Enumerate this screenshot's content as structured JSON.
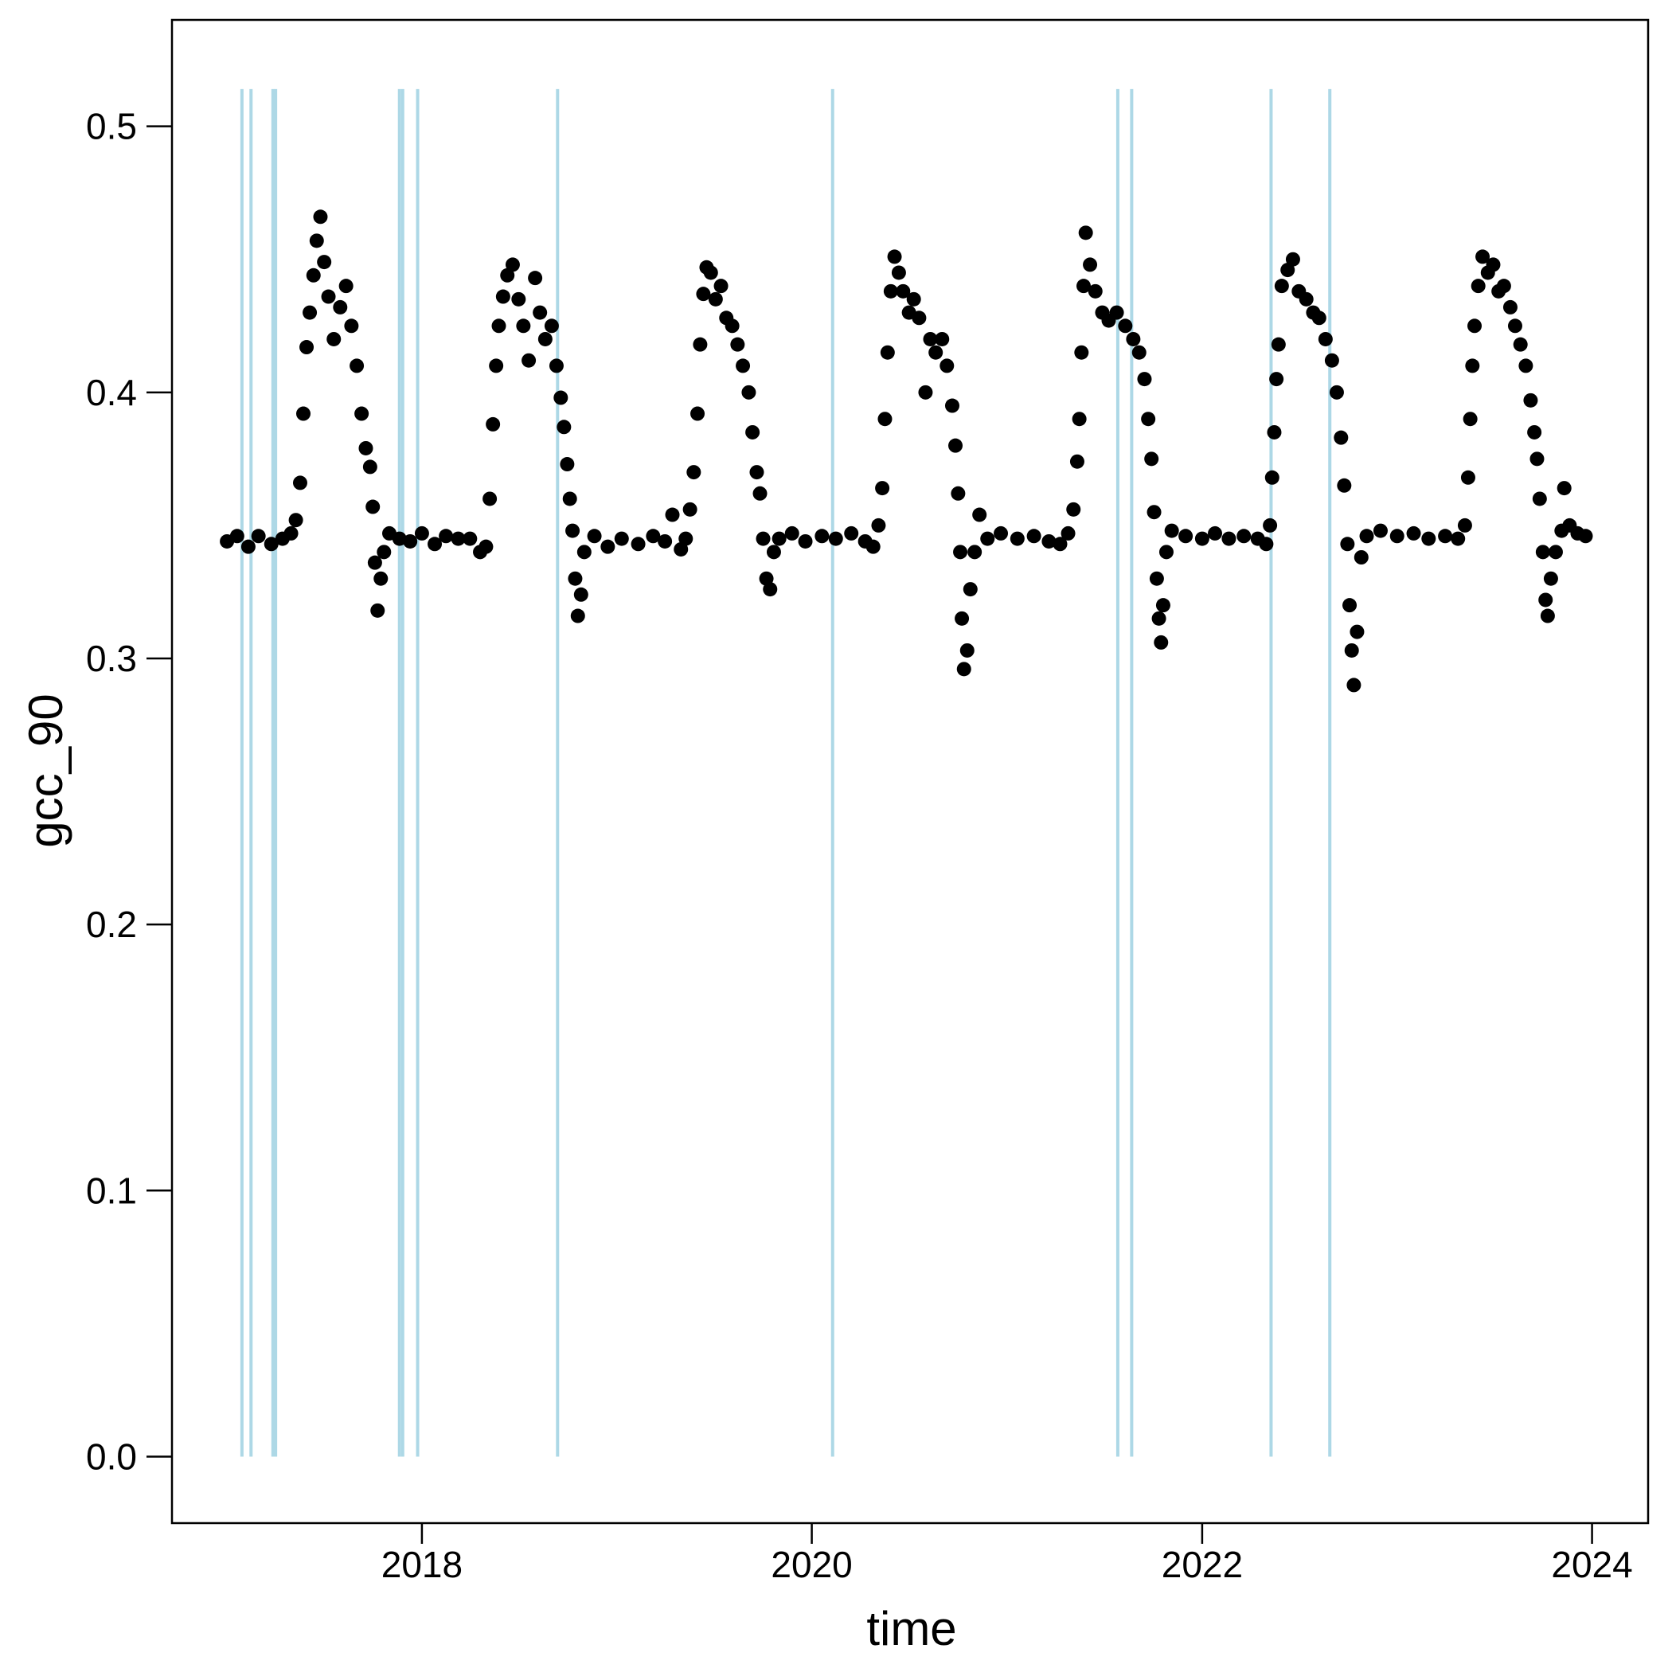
{
  "chart_data": {
    "type": "scatter",
    "title": "",
    "xlabel": "time",
    "ylabel": "gcc_90",
    "xlim": [
      "2016-09-20",
      "2024-04-15"
    ],
    "ylim": [
      -0.025,
      0.54
    ],
    "x_ticks": [
      {
        "value": "2018-01-01",
        "label": "2018"
      },
      {
        "value": "2020-01-01",
        "label": "2020"
      },
      {
        "value": "2022-01-01",
        "label": "2022"
      },
      {
        "value": "2024-01-01",
        "label": "2024"
      }
    ],
    "y_ticks": [
      {
        "value": 0.0,
        "label": "0.0"
      },
      {
        "value": 0.1,
        "label": "0.1"
      },
      {
        "value": 0.2,
        "label": "0.2"
      },
      {
        "value": 0.3,
        "label": "0.3"
      },
      {
        "value": 0.4,
        "label": "0.4"
      },
      {
        "value": 0.5,
        "label": "0.5"
      }
    ],
    "grid": false,
    "legend": "none",
    "point_color": "#000000",
    "line_color": "#add8e6",
    "vertical_lines": {
      "x": [
        "2017-01-29",
        "2017-02-15",
        "2017-03-28",
        "2017-04-02",
        "2017-11-20",
        "2017-11-26",
        "2017-12-24",
        "2018-09-12",
        "2020-02-09",
        "2021-07-27",
        "2021-08-22",
        "2022-05-10",
        "2022-08-28"
      ],
      "y_range": [
        0.0,
        0.514
      ]
    },
    "series": [
      {
        "values": [
          [
            "2017-01-01",
            0.344
          ],
          [
            "2017-01-20",
            0.346
          ],
          [
            "2017-02-10",
            0.342
          ],
          [
            "2017-03-01",
            0.346
          ],
          [
            "2017-03-25",
            0.343
          ],
          [
            "2017-04-15",
            0.345
          ],
          [
            "2017-05-01",
            0.347
          ],
          [
            "2017-05-10",
            0.352
          ],
          [
            "2017-05-18",
            0.366
          ],
          [
            "2017-05-24",
            0.392
          ],
          [
            "2017-05-30",
            0.417
          ],
          [
            "2017-06-05",
            0.43
          ],
          [
            "2017-06-12",
            0.444
          ],
          [
            "2017-06-18",
            0.457
          ],
          [
            "2017-06-25",
            0.466
          ],
          [
            "2017-07-02",
            0.449
          ],
          [
            "2017-07-10",
            0.436
          ],
          [
            "2017-07-20",
            0.42
          ],
          [
            "2017-08-01",
            0.432
          ],
          [
            "2017-08-12",
            0.44
          ],
          [
            "2017-08-22",
            0.425
          ],
          [
            "2017-09-01",
            0.41
          ],
          [
            "2017-09-10",
            0.392
          ],
          [
            "2017-09-18",
            0.379
          ],
          [
            "2017-09-26",
            0.372
          ],
          [
            "2017-10-01",
            0.357
          ],
          [
            "2017-10-05",
            0.336
          ],
          [
            "2017-10-10",
            0.318
          ],
          [
            "2017-10-16",
            0.33
          ],
          [
            "2017-10-22",
            0.34
          ],
          [
            "2017-11-01",
            0.347
          ],
          [
            "2017-11-20",
            0.345
          ],
          [
            "2017-12-10",
            0.344
          ],
          [
            "2018-01-01",
            0.347
          ],
          [
            "2018-01-25",
            0.343
          ],
          [
            "2018-02-15",
            0.346
          ],
          [
            "2018-03-10",
            0.345
          ],
          [
            "2018-04-01",
            0.345
          ],
          [
            "2018-04-20",
            0.34
          ],
          [
            "2018-05-01",
            0.342
          ],
          [
            "2018-05-08",
            0.36
          ],
          [
            "2018-05-14",
            0.388
          ],
          [
            "2018-05-20",
            0.41
          ],
          [
            "2018-05-25",
            0.425
          ],
          [
            "2018-06-02",
            0.436
          ],
          [
            "2018-06-10",
            0.444
          ],
          [
            "2018-06-20",
            0.448
          ],
          [
            "2018-07-01",
            0.435
          ],
          [
            "2018-07-10",
            0.425
          ],
          [
            "2018-07-20",
            0.412
          ],
          [
            "2018-08-01",
            0.443
          ],
          [
            "2018-08-10",
            0.43
          ],
          [
            "2018-08-20",
            0.42
          ],
          [
            "2018-09-01",
            0.425
          ],
          [
            "2018-09-10",
            0.41
          ],
          [
            "2018-09-18",
            0.398
          ],
          [
            "2018-09-24",
            0.387
          ],
          [
            "2018-09-30",
            0.373
          ],
          [
            "2018-10-05",
            0.36
          ],
          [
            "2018-10-10",
            0.348
          ],
          [
            "2018-10-15",
            0.33
          ],
          [
            "2018-10-20",
            0.316
          ],
          [
            "2018-10-26",
            0.324
          ],
          [
            "2018-11-01",
            0.34
          ],
          [
            "2018-11-20",
            0.346
          ],
          [
            "2018-12-15",
            0.342
          ],
          [
            "2019-01-10",
            0.345
          ],
          [
            "2019-02-10",
            0.343
          ],
          [
            "2019-03-10",
            0.346
          ],
          [
            "2019-04-01",
            0.344
          ],
          [
            "2019-04-15",
            0.354
          ],
          [
            "2019-05-01",
            0.341
          ],
          [
            "2019-05-10",
            0.345
          ],
          [
            "2019-05-18",
            0.356
          ],
          [
            "2019-05-25",
            0.37
          ],
          [
            "2019-06-01",
            0.392
          ],
          [
            "2019-06-06",
            0.418
          ],
          [
            "2019-06-12",
            0.437
          ],
          [
            "2019-06-18",
            0.447
          ],
          [
            "2019-06-26",
            0.445
          ],
          [
            "2019-07-05",
            0.435
          ],
          [
            "2019-07-15",
            0.44
          ],
          [
            "2019-07-25",
            0.428
          ],
          [
            "2019-08-05",
            0.425
          ],
          [
            "2019-08-15",
            0.418
          ],
          [
            "2019-08-25",
            0.41
          ],
          [
            "2019-09-05",
            0.4
          ],
          [
            "2019-09-12",
            0.385
          ],
          [
            "2019-09-20",
            0.37
          ],
          [
            "2019-09-26",
            0.362
          ],
          [
            "2019-10-02",
            0.345
          ],
          [
            "2019-10-08",
            0.33
          ],
          [
            "2019-10-15",
            0.326
          ],
          [
            "2019-10-22",
            0.34
          ],
          [
            "2019-11-01",
            0.345
          ],
          [
            "2019-11-25",
            0.347
          ],
          [
            "2019-12-20",
            0.344
          ],
          [
            "2020-01-20",
            0.346
          ],
          [
            "2020-02-15",
            0.345
          ],
          [
            "2020-03-15",
            0.347
          ],
          [
            "2020-04-10",
            0.344
          ],
          [
            "2020-04-25",
            0.342
          ],
          [
            "2020-05-05",
            0.35
          ],
          [
            "2020-05-12",
            0.364
          ],
          [
            "2020-05-17",
            0.39
          ],
          [
            "2020-05-22",
            0.415
          ],
          [
            "2020-05-28",
            0.438
          ],
          [
            "2020-06-04",
            0.451
          ],
          [
            "2020-06-12",
            0.445
          ],
          [
            "2020-06-20",
            0.438
          ],
          [
            "2020-07-01",
            0.43
          ],
          [
            "2020-07-10",
            0.435
          ],
          [
            "2020-07-20",
            0.428
          ],
          [
            "2020-08-01",
            0.4
          ],
          [
            "2020-08-10",
            0.42
          ],
          [
            "2020-08-20",
            0.415
          ],
          [
            "2020-09-01",
            0.42
          ],
          [
            "2020-09-10",
            0.41
          ],
          [
            "2020-09-20",
            0.395
          ],
          [
            "2020-09-26",
            0.38
          ],
          [
            "2020-10-01",
            0.362
          ],
          [
            "2020-10-05",
            0.34
          ],
          [
            "2020-10-08",
            0.315
          ],
          [
            "2020-10-12",
            0.296
          ],
          [
            "2020-10-18",
            0.303
          ],
          [
            "2020-10-24",
            0.326
          ],
          [
            "2020-11-01",
            0.34
          ],
          [
            "2020-11-10",
            0.354
          ],
          [
            "2020-11-25",
            0.345
          ],
          [
            "2020-12-20",
            0.347
          ],
          [
            "2021-01-20",
            0.345
          ],
          [
            "2021-02-20",
            0.346
          ],
          [
            "2021-03-20",
            0.344
          ],
          [
            "2021-04-10",
            0.343
          ],
          [
            "2021-04-25",
            0.347
          ],
          [
            "2021-05-05",
            0.356
          ],
          [
            "2021-05-12",
            0.374
          ],
          [
            "2021-05-16",
            0.39
          ],
          [
            "2021-05-20",
            0.415
          ],
          [
            "2021-05-24",
            0.44
          ],
          [
            "2021-05-28",
            0.46
          ],
          [
            "2021-06-05",
            0.448
          ],
          [
            "2021-06-15",
            0.438
          ],
          [
            "2021-06-28",
            0.43
          ],
          [
            "2021-07-10",
            0.427
          ],
          [
            "2021-07-25",
            0.43
          ],
          [
            "2021-08-10",
            0.425
          ],
          [
            "2021-08-25",
            0.42
          ],
          [
            "2021-09-05",
            0.415
          ],
          [
            "2021-09-15",
            0.405
          ],
          [
            "2021-09-22",
            0.39
          ],
          [
            "2021-09-28",
            0.375
          ],
          [
            "2021-10-03",
            0.355
          ],
          [
            "2021-10-08",
            0.33
          ],
          [
            "2021-10-12",
            0.315
          ],
          [
            "2021-10-16",
            0.306
          ],
          [
            "2021-10-20",
            0.32
          ],
          [
            "2021-10-26",
            0.34
          ],
          [
            "2021-11-05",
            0.348
          ],
          [
            "2021-12-01",
            0.346
          ],
          [
            "2022-01-01",
            0.345
          ],
          [
            "2022-01-25",
            0.347
          ],
          [
            "2022-02-20",
            0.345
          ],
          [
            "2022-03-20",
            0.346
          ],
          [
            "2022-04-15",
            0.345
          ],
          [
            "2022-05-01",
            0.343
          ],
          [
            "2022-05-08",
            0.35
          ],
          [
            "2022-05-12",
            0.368
          ],
          [
            "2022-05-16",
            0.385
          ],
          [
            "2022-05-20",
            0.405
          ],
          [
            "2022-05-24",
            0.418
          ],
          [
            "2022-05-30",
            0.44
          ],
          [
            "2022-06-10",
            0.446
          ],
          [
            "2022-06-20",
            0.45
          ],
          [
            "2022-07-01",
            0.438
          ],
          [
            "2022-07-15",
            0.435
          ],
          [
            "2022-07-28",
            0.43
          ],
          [
            "2022-08-08",
            0.428
          ],
          [
            "2022-08-20",
            0.42
          ],
          [
            "2022-09-01",
            0.412
          ],
          [
            "2022-09-10",
            0.4
          ],
          [
            "2022-09-18",
            0.383
          ],
          [
            "2022-09-24",
            0.365
          ],
          [
            "2022-09-30",
            0.343
          ],
          [
            "2022-10-04",
            0.32
          ],
          [
            "2022-10-08",
            0.303
          ],
          [
            "2022-10-12",
            0.29
          ],
          [
            "2022-10-18",
            0.31
          ],
          [
            "2022-10-26",
            0.338
          ],
          [
            "2022-11-05",
            0.346
          ],
          [
            "2022-12-01",
            0.348
          ],
          [
            "2023-01-01",
            0.346
          ],
          [
            "2023-02-01",
            0.347
          ],
          [
            "2023-03-01",
            0.345
          ],
          [
            "2023-04-01",
            0.346
          ],
          [
            "2023-04-25",
            0.345
          ],
          [
            "2023-05-08",
            0.35
          ],
          [
            "2023-05-14",
            0.368
          ],
          [
            "2023-05-18",
            0.39
          ],
          [
            "2023-05-22",
            0.41
          ],
          [
            "2023-05-26",
            0.425
          ],
          [
            "2023-06-02",
            0.44
          ],
          [
            "2023-06-10",
            0.451
          ],
          [
            "2023-06-20",
            0.445
          ],
          [
            "2023-06-30",
            0.448
          ],
          [
            "2023-07-10",
            0.438
          ],
          [
            "2023-07-20",
            0.44
          ],
          [
            "2023-08-01",
            0.432
          ],
          [
            "2023-08-10",
            0.425
          ],
          [
            "2023-08-20",
            0.418
          ],
          [
            "2023-08-30",
            0.41
          ],
          [
            "2023-09-08",
            0.397
          ],
          [
            "2023-09-15",
            0.385
          ],
          [
            "2023-09-20",
            0.375
          ],
          [
            "2023-09-25",
            0.36
          ],
          [
            "2023-10-01",
            0.34
          ],
          [
            "2023-10-06",
            0.322
          ],
          [
            "2023-10-10",
            0.316
          ],
          [
            "2023-10-16",
            0.33
          ],
          [
            "2023-10-25",
            0.34
          ],
          [
            "2023-11-05",
            0.348
          ],
          [
            "2023-11-10",
            0.364
          ],
          [
            "2023-11-20",
            0.35
          ],
          [
            "2023-12-05",
            0.347
          ],
          [
            "2023-12-20",
            0.346
          ]
        ]
      }
    ]
  }
}
